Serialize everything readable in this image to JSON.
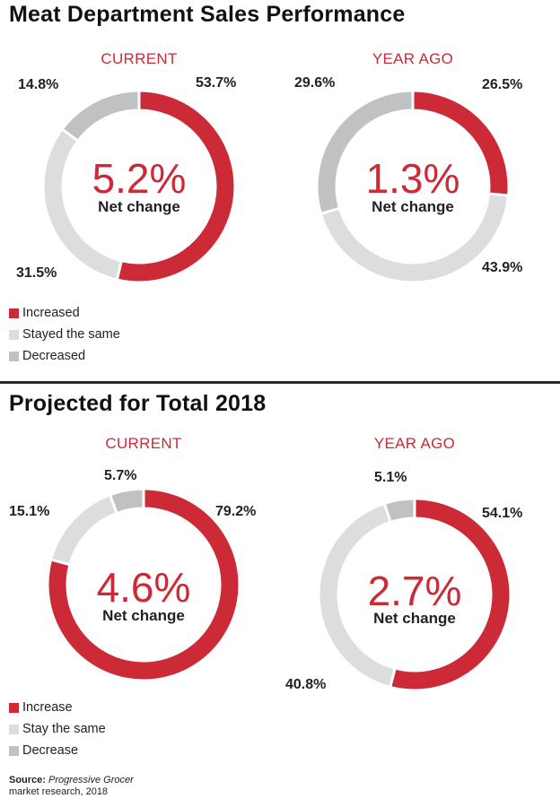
{
  "colors": {
    "increased": "#cc2a36",
    "same": "#dcdddf",
    "decreased": "#bfc1c3",
    "track": "#ffffff"
  },
  "sections": [
    {
      "title": "Meat Department Sales Performance",
      "legend": [
        "Increased",
        "Stayed the same",
        "Decreased"
      ]
    },
    {
      "title": "Projected for Total 2018",
      "legend": [
        "Increase",
        "Stay the same",
        "Decrease"
      ]
    }
  ],
  "chart_data": [
    {
      "type": "pie",
      "title": "CURRENT",
      "center_value": "5.2%",
      "center_label": "Net change",
      "categories": [
        "Increased",
        "Stayed the same",
        "Decreased"
      ],
      "values": [
        53.7,
        31.5,
        14.8
      ],
      "labels": [
        "53.7%",
        "31.5%",
        "14.8%"
      ]
    },
    {
      "type": "pie",
      "title": "YEAR AGO",
      "center_value": "1.3%",
      "center_label": "Net change",
      "categories": [
        "Increased",
        "Stayed the same",
        "Decreased"
      ],
      "values": [
        26.5,
        43.9,
        29.6
      ],
      "labels": [
        "26.5%",
        "43.9%",
        "29.6%"
      ]
    },
    {
      "type": "pie",
      "title": "CURRENT",
      "center_value": "4.6%",
      "center_label": "Net change",
      "categories": [
        "Increase",
        "Stay the same",
        "Decrease"
      ],
      "values": [
        79.2,
        15.1,
        5.7
      ],
      "labels": [
        "79.2%",
        "15.1%",
        "5.7%"
      ]
    },
    {
      "type": "pie",
      "title": "YEAR AGO",
      "center_value": "2.7%",
      "center_label": "Net change",
      "categories": [
        "Increase",
        "Stay the same",
        "Decrease"
      ],
      "values": [
        54.1,
        40.8,
        5.1
      ],
      "labels": [
        "54.1%",
        "40.8%",
        "5.1%"
      ]
    }
  ],
  "source": {
    "bold": "Source:",
    "italic": "Progressive Grocer",
    "rest": "market research, 2018"
  }
}
